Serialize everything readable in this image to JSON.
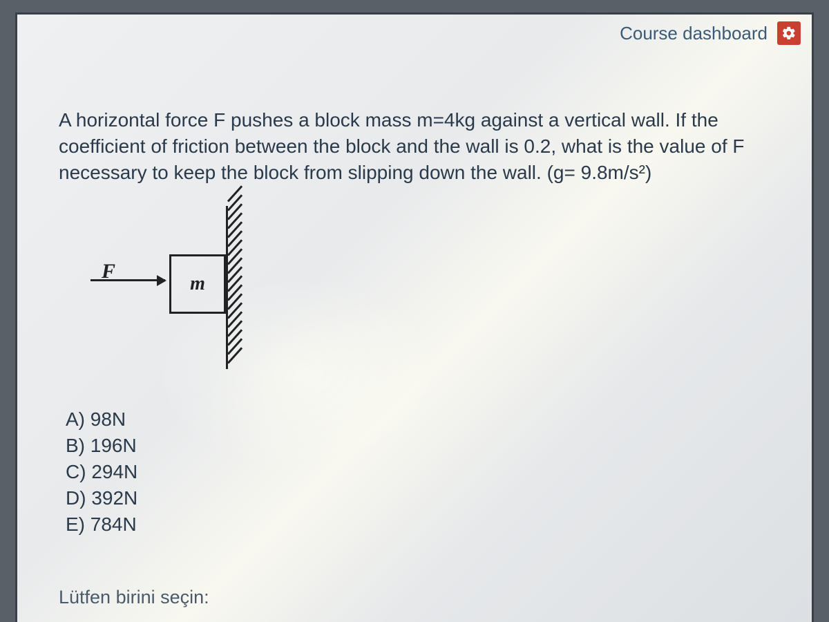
{
  "header": {
    "dashboard_link": "Course dashboard"
  },
  "question": {
    "text_html": "A horizontal force F pushes a block mass m=4kg against a vertical wall. If the coefficient of friction between the block and the wall is 0.2, what is the value of F necessary to keep the block from slipping down the wall. (g= 9.8m/s²)",
    "diagram": {
      "force_label": "F",
      "mass_label": "m",
      "hatch_count": 19,
      "hatch_spacing": 13
    },
    "options": [
      "A) 98N",
      "B) 196N",
      "C) 294N",
      "D) 392N",
      "E) 784N"
    ],
    "select_prompt": "Lütfen birini seçin:",
    "radio_visible": {
      "label": "A"
    }
  },
  "colors": {
    "frame_bg": "#eef0f2",
    "dashboard_link": "#3a5a78",
    "gear_bg": "#c94030",
    "text": "#2a3a4a",
    "diagram_stroke": "#222222"
  }
}
